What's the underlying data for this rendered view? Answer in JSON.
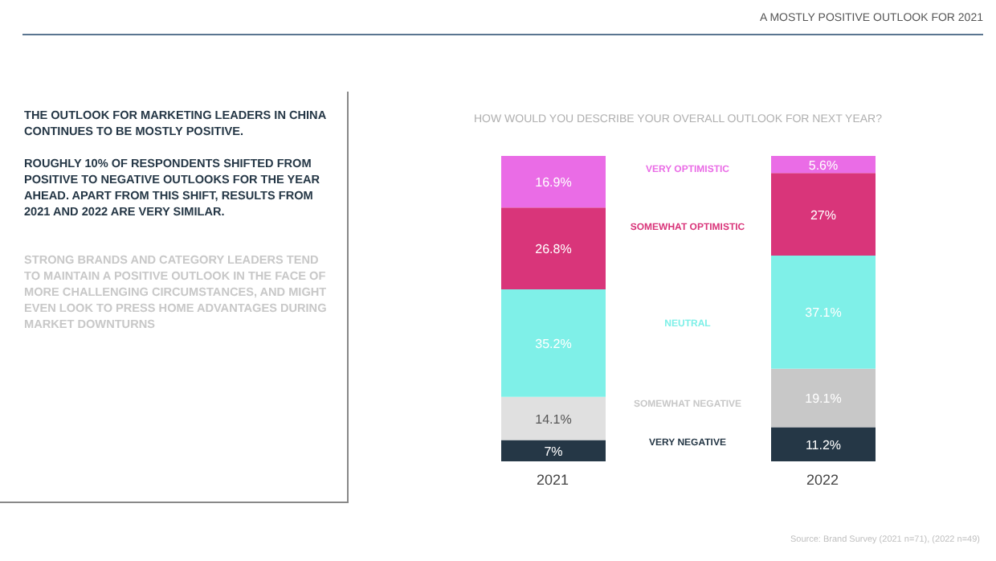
{
  "chart_data": {
    "type": "bar",
    "stacked": true,
    "relative": false,
    "data_labels": true,
    "legend": false,
    "grid": false,
    "title": "HOW WOULD YOU DESCRIBE YOUR OVERALL OUTLOOK FOR NEXT YEAR?",
    "categories": [
      "2021",
      "2022"
    ],
    "series": [
      {
        "name": "VERY NEGATIVE",
        "color": "#253746",
        "values": [
          7,
          11.2
        ],
        "value_labels": [
          "7%",
          "11.2%"
        ]
      },
      {
        "name": "SOMEWHAT NEGATIVE",
        "colors": [
          "#e0e0e0",
          "#c8c8c8"
        ],
        "values": [
          14.1,
          19.1
        ],
        "value_labels": [
          "14.1%",
          "19.1%"
        ]
      },
      {
        "name": "NEUTRAL",
        "color": "#7ff0e8",
        "values": [
          35.2,
          37.1
        ],
        "value_labels": [
          "35.2%",
          "37.1%"
        ]
      },
      {
        "name": "SOMEWHAT OPTIMISTIC",
        "color": "#d9357a",
        "values": [
          26.8,
          27
        ],
        "value_labels": [
          "26.8%",
          "27%"
        ]
      },
      {
        "name": "VERY OPTIMISTIC",
        "color": "#ea6ce6",
        "values": [
          16.9,
          5.6
        ],
        "value_labels": [
          "16.9%",
          "5.6%"
        ]
      }
    ],
    "annotations": [
      "A MOSTLY POSITIVE OUTLOOK FOR 2021",
      "THE OUTLOOK FOR MARKETING LEADERS IN CHINA CONTINUES TO BE MOSTLY POSITIVE.",
      "ROUGHLY 10% OF RESPONDENTS SHIFTED FROM POSITIVE TO NEGATIVE OUTLOOKS FOR THE YEAR AHEAD. APART FROM THIS SHIFT, RESULTS FROM 2021 AND 2022 ARE VERY SIMILAR.",
      "STRONG BRANDS AND CATEGORY LEADERS TEND TO MAINTAIN A POSITIVE OUTLOOK IN THE FACE OF MORE CHALLENGING CIRCUMSTANCES, AND MIGHT EVEN LOOK TO PRESS HOME ADVANTAGES DURING MARKET DOWNTURNS",
      "Source: Brand Survey (2021 n=71), (2022 n=49)"
    ]
  }
}
